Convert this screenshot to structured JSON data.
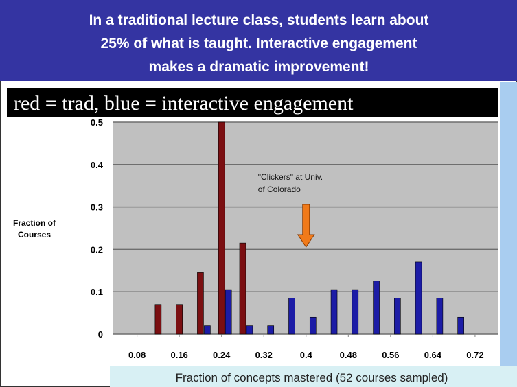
{
  "chart_data": {
    "type": "bar",
    "title": [
      "In a traditional lecture class, students learn about",
      "25% of what is taught. Interactive engagement",
      "makes a dramatic improvement!"
    ],
    "legend": "red = trad, blue = interactive engagement",
    "ylabel": [
      "Fraction of",
      "Courses"
    ],
    "xlabel": "Fraction of concepts mastered (52 courses sampled)",
    "annotation": [
      "\"Clickers\" at Univ.",
      "of Colorado"
    ],
    "annotation_x": 0.4,
    "series": [
      {
        "color": "#7b0f12",
        "x": [
          0.12,
          0.16,
          0.2,
          0.24,
          0.28
        ],
        "values": [
          0.07,
          0.07,
          0.145,
          0.5,
          0.215
        ]
      },
      {
        "color": "#1c1ca6",
        "x": [
          0.213,
          0.253,
          0.293,
          0.333,
          0.373,
          0.413,
          0.453,
          0.493,
          0.533,
          0.573,
          0.613,
          0.653,
          0.693
        ],
        "values": [
          0.02,
          0.105,
          0.02,
          0.02,
          0.085,
          0.04,
          0.105,
          0.105,
          0.125,
          0.085,
          0.17,
          0.085,
          0.04
        ]
      }
    ],
    "xlim": [
      0.035,
      0.763
    ],
    "xticks": [
      0.08,
      0.16,
      0.24,
      0.32,
      0.4,
      0.48,
      0.56,
      0.64,
      0.72
    ],
    "ylim": [
      0,
      0.5
    ],
    "yticks": [
      0,
      0.1,
      0.2,
      0.3,
      0.4,
      0.5
    ],
    "grid": true
  }
}
